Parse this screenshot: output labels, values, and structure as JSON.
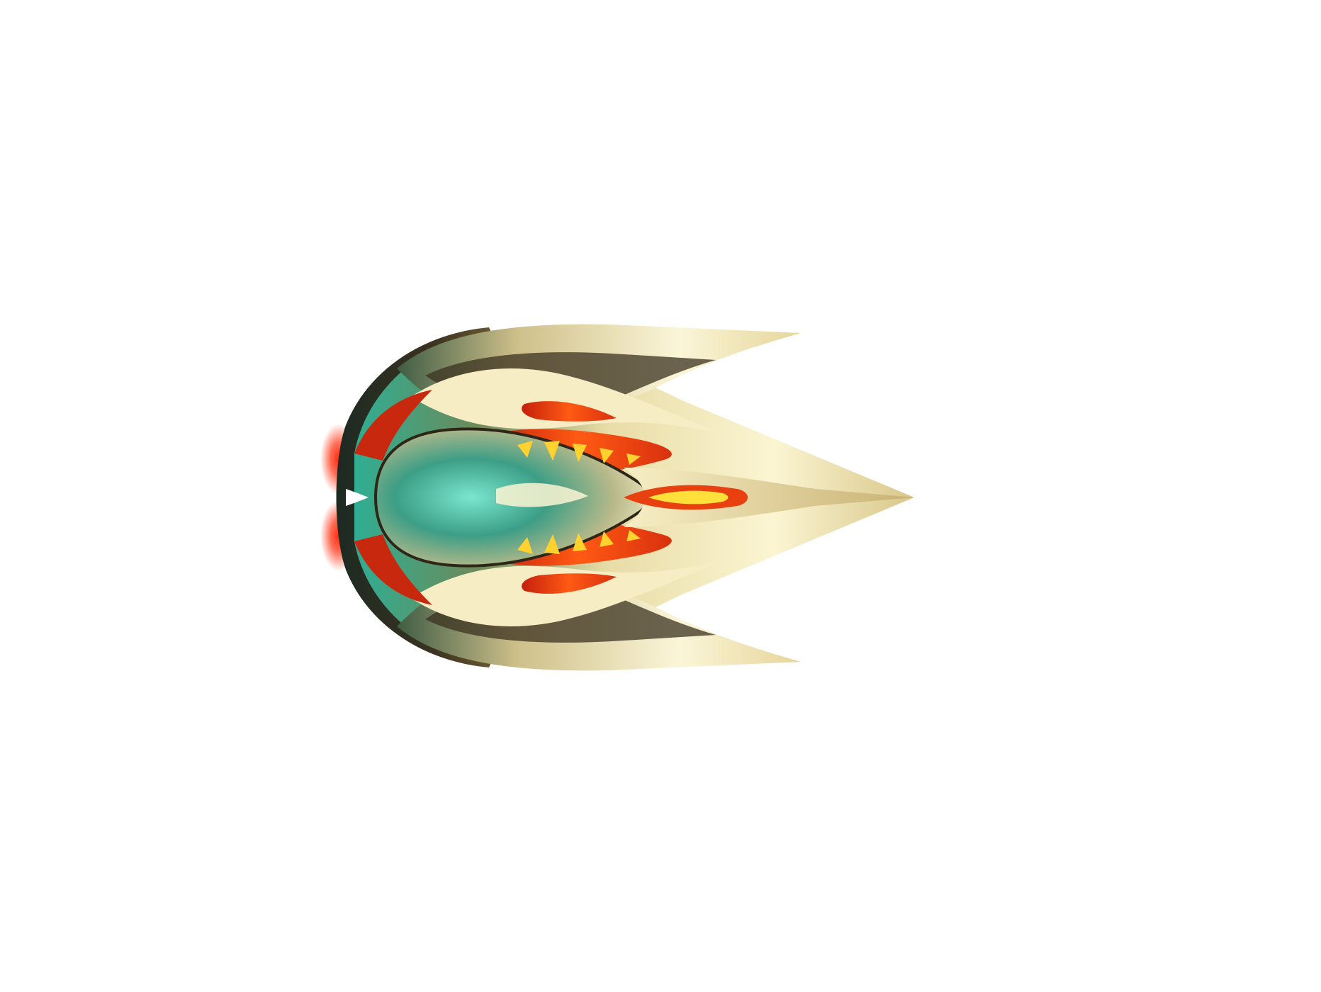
{
  "scene": {
    "background_color": "#ffffff",
    "sprite": "alien-spaceship-sprite",
    "facing": "right",
    "colors": {
      "hull_gold_light": "#fbf5d2",
      "hull_gold": "#e0cf8c",
      "hull_bronze": "#7d6a3c",
      "hull_dark": "#2e2616",
      "canopy_teal": "#5ed8bf",
      "canopy_teal_dark": "#1d6b5a",
      "vent_red": "#d92c12",
      "vent_orange": "#ff7a1a",
      "vent_yellow": "#ffe03a",
      "engine_glow": "#ff3a1a"
    }
  }
}
